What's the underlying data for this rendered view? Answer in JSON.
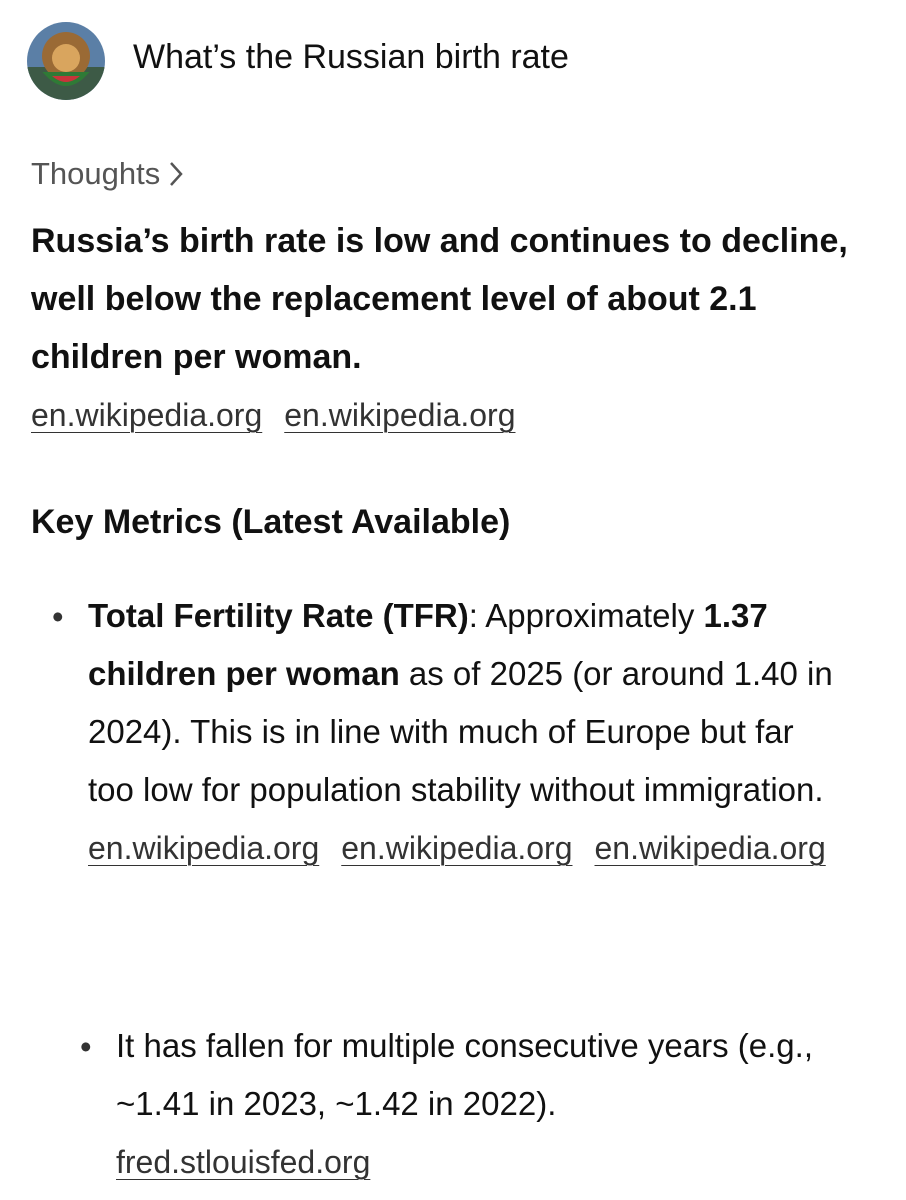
{
  "header": {
    "title": "What’s the Russian birth rate"
  },
  "thoughts": {
    "label": "Thoughts"
  },
  "summary": {
    "text": "Russia’s birth rate is low and continues to decline, well below the replacement level of about 2.1 children per woman.",
    "links": [
      "en.wikipedia.org",
      "en.wikipedia.org"
    ]
  },
  "section": {
    "heading": "Key Metrics (Latest Available)",
    "bullets": [
      {
        "segments": [
          {
            "text": "Total Fertility Rate (TFR)",
            "bold": true
          },
          {
            "text": ": Approximately ",
            "bold": false
          },
          {
            "text": "1.37 children per woman",
            "bold": true
          },
          {
            "text": " as of 2025 (or around 1.40 in 2024). This is in line with much of Europe but far too low for population stability without immigration.",
            "bold": false
          }
        ],
        "links": [
          "en.wikipedia.org",
          "en.wikipedia.org",
          "en.wikipedia.org"
        ],
        "sub_bullets": [
          {
            "segments": [
              {
                "text": "It has fallen for multiple consecutive years (e.g., ~1.41 in 2023, ~1.42 in 2022).",
                "bold": false
              }
            ],
            "links": [
              "fred.stlouisfed.org"
            ]
          }
        ]
      }
    ]
  }
}
